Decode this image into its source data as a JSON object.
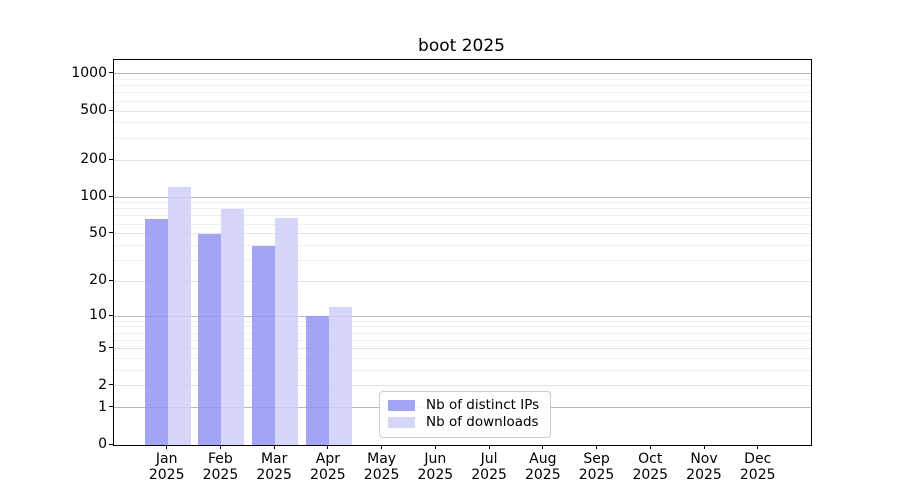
{
  "title": "boot 2025",
  "chart_data": {
    "type": "bar",
    "title": "boot 2025",
    "categories": [
      "Jan 2025",
      "Feb 2025",
      "Mar 2025",
      "Apr 2025",
      "May 2025",
      "Jun 2025",
      "Jul 2025",
      "Aug 2025",
      "Sep 2025",
      "Oct 2025",
      "Nov 2025",
      "Dec 2025"
    ],
    "series": [
      {
        "key": "distinct-ips",
        "name": "Nb of distinct IPs",
        "color": "#a4a4f5",
        "color_rgba": "rgba(148,148,243,0.85)",
        "values": [
          66,
          50,
          40,
          10,
          0,
          0,
          0,
          0,
          0,
          0,
          0,
          0
        ]
      },
      {
        "key": "downloads",
        "name": "Nb of downloads",
        "color": "#d6d6f8",
        "color_rgba": "rgba(207,207,247,0.85)",
        "values": [
          120,
          80,
          67,
          12,
          0,
          0,
          0,
          0,
          0,
          0,
          0,
          0
        ]
      }
    ],
    "xlabel": "",
    "ylabel": "",
    "y_scale": "log10(1+v)",
    "y_ticks": [
      0,
      1,
      2,
      5,
      10,
      20,
      50,
      100,
      200,
      500,
      1000
    ],
    "y_minor_gridlines": [
      3,
      4,
      6,
      7,
      8,
      9,
      30,
      40,
      60,
      70,
      80,
      90,
      300,
      400,
      600,
      700,
      800,
      900
    ],
    "ylim": [
      0,
      1280
    ],
    "grid": "both",
    "legend_position": "inside-lower-middle"
  },
  "colors": {
    "bar_dark": "#a4a4f5",
    "bar_light": "#d6d6f8",
    "grid_major": "#b8b8b8",
    "grid_minor": "#efefef",
    "axis": "#000000",
    "legend_border": "#cccccc"
  }
}
